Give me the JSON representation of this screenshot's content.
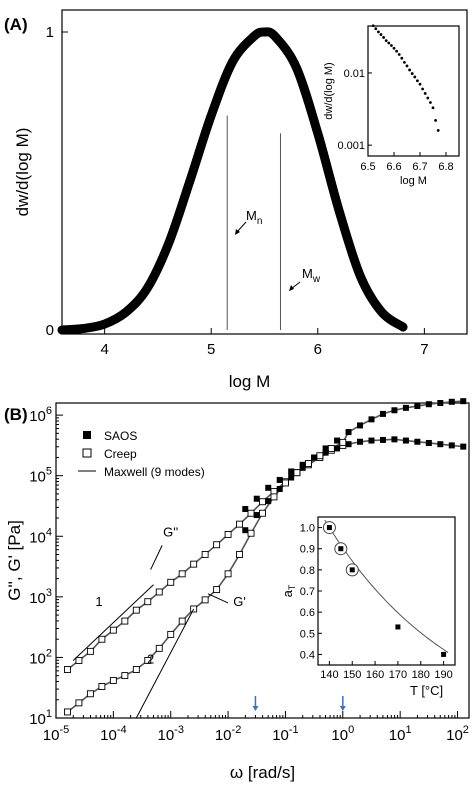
{
  "chart_data": [
    {
      "panel": "(A)",
      "type": "area",
      "xlabel": "log M",
      "ylabel": "dw/d(log M)",
      "xlim": [
        3.6,
        7.4
      ],
      "ylim": [
        0,
        1
      ],
      "xticks": [
        "4",
        "5",
        "6",
        "7"
      ],
      "yticks": [
        "0",
        "1"
      ],
      "x": [
        3.6,
        3.8,
        4.0,
        4.2,
        4.4,
        4.6,
        4.8,
        5.0,
        5.2,
        5.4,
        5.5,
        5.6,
        5.8,
        6.0,
        6.2,
        6.4,
        6.6,
        6.8
      ],
      "y": [
        0.0,
        0.005,
        0.02,
        0.06,
        0.14,
        0.29,
        0.5,
        0.72,
        0.9,
        0.985,
        1.0,
        0.985,
        0.88,
        0.66,
        0.4,
        0.18,
        0.06,
        0.01
      ],
      "markers": [
        {
          "label": "M",
          "sub": "n",
          "x": 5.15
        },
        {
          "label": "M",
          "sub": "w",
          "x": 5.65
        }
      ],
      "inset": {
        "type": "scatter",
        "xlabel": "log M",
        "ylabel": "dw/d(log M)",
        "xlim": [
          6.5,
          6.85
        ],
        "ylim_log10": [
          -3.15,
          -1.35
        ],
        "xticks": [
          "6.5",
          "6.6",
          "6.7",
          "6.8"
        ],
        "yticks": [
          "0.001",
          "0.01"
        ],
        "x": [
          6.52,
          6.53,
          6.54,
          6.55,
          6.56,
          6.57,
          6.58,
          6.59,
          6.6,
          6.61,
          6.62,
          6.63,
          6.64,
          6.65,
          6.66,
          6.67,
          6.68,
          6.69,
          6.7,
          6.71,
          6.72,
          6.73,
          6.74,
          6.75,
          6.76,
          6.77
        ],
        "y": [
          0.045,
          0.041,
          0.037,
          0.034,
          0.031,
          0.028,
          0.026,
          0.024,
          0.022,
          0.02,
          0.018,
          0.016,
          0.014,
          0.0125,
          0.011,
          0.0098,
          0.0088,
          0.0078,
          0.007,
          0.006,
          0.0052,
          0.0045,
          0.0039,
          0.0033,
          0.0022,
          0.0016
        ]
      }
    },
    {
      "panel": "(B)",
      "type": "scatter",
      "xlabel": "ω [rad/s]",
      "ylabel": "G'', G' [Pa]",
      "xscale": "log",
      "yscale": "log",
      "xlim_log10": [
        -5,
        2.2
      ],
      "ylim_log10": [
        1,
        6.2
      ],
      "xticks": [
        "10-5",
        "10-4",
        "10-3",
        "10-2",
        "10-1",
        "100",
        "101",
        "102"
      ],
      "yticks": [
        "101",
        "102",
        "103",
        "104",
        "105",
        "106"
      ],
      "legend": {
        "position": "top-left",
        "entries": [
          {
            "marker": "filled-square",
            "label": "SAOS"
          },
          {
            "marker": "open-square",
            "label": "Creep"
          },
          {
            "marker": "line",
            "label": "Maxwell (9 modes)"
          }
        ]
      },
      "annotations": [
        {
          "text": "G''"
        },
        {
          "text": "G'"
        },
        {
          "text": "1"
        },
        {
          "text": "2"
        }
      ],
      "series": [
        {
          "name": "SAOS",
          "x_log10": [
            -1.7,
            -1.5,
            -1.3,
            -1.1,
            -0.9,
            -0.7,
            -0.5,
            -0.3,
            -0.1,
            0.1,
            0.3,
            0.5,
            0.7,
            0.9,
            1.1,
            1.3,
            1.5,
            1.7,
            1.9,
            2.1
          ],
          "Gpp_log10": [
            4.45,
            4.62,
            4.8,
            4.93,
            5.07,
            5.18,
            5.3,
            5.38,
            5.45,
            5.52,
            5.56,
            5.58,
            5.59,
            5.6,
            5.58,
            5.56,
            5.54,
            5.52,
            5.5,
            5.48
          ],
          "Gp_log10": [
            4.1,
            4.35,
            4.58,
            4.78,
            4.97,
            5.13,
            5.3,
            5.45,
            5.58,
            5.72,
            5.83,
            5.93,
            6.02,
            6.08,
            6.12,
            6.15,
            6.18,
            6.2,
            6.22,
            6.23
          ]
        },
        {
          "name": "Creep",
          "x_log10": [
            -4.8,
            -4.6,
            -4.4,
            -4.2,
            -4.0,
            -3.8,
            -3.6,
            -3.4,
            -3.2,
            -3.0,
            -2.8,
            -2.6,
            -2.4,
            -2.2,
            -2.0,
            -1.8,
            -1.6,
            -1.4,
            -1.2,
            -1.0,
            -0.8,
            -0.6,
            -0.4,
            -0.2,
            0.0
          ],
          "Gpp_log10": [
            1.8,
            1.95,
            2.1,
            2.3,
            2.45,
            2.6,
            2.78,
            2.92,
            3.08,
            3.24,
            3.38,
            3.54,
            3.7,
            3.86,
            4.03,
            4.2,
            4.38,
            4.57,
            4.74,
            4.9,
            5.05,
            5.18,
            5.3,
            5.42,
            5.5
          ],
          "Gp_log10": [
            1.1,
            1.25,
            1.4,
            1.52,
            1.62,
            1.7,
            1.8,
            1.95,
            2.15,
            2.38,
            2.6,
            2.8,
            2.95,
            3.12,
            3.38,
            3.7,
            4.05,
            4.38,
            4.65,
            4.88,
            5.05,
            5.2,
            5.33,
            5.45,
            5.55
          ]
        }
      ],
      "inset": {
        "type": "scatter",
        "xlabel": "T [°C]",
        "ylabel": "aT",
        "xlim": [
          135,
          195
        ],
        "ylim": [
          0.35,
          1.05
        ],
        "xticks": [
          "140",
          "150",
          "160",
          "170",
          "180",
          "190"
        ],
        "yticks": [
          "0.4",
          "0.5",
          "0.6",
          "0.7",
          "0.8",
          "0.9",
          "1.0"
        ],
        "points": [
          {
            "T": 140,
            "aT": 1.0,
            "circled": true
          },
          {
            "T": 145,
            "aT": 0.9,
            "circled": true
          },
          {
            "T": 150,
            "aT": 0.8,
            "circled": true
          },
          {
            "T": 170,
            "aT": 0.53,
            "circled": false
          },
          {
            "T": 190,
            "aT": 0.4,
            "circled": false
          }
        ]
      }
    }
  ]
}
